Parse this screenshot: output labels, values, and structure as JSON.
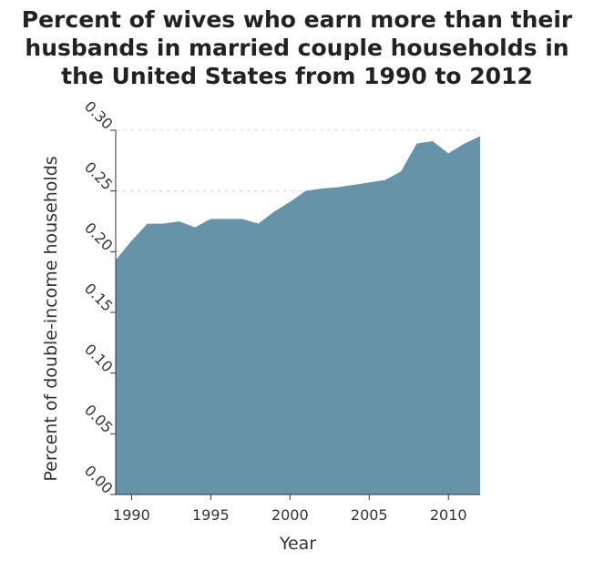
{
  "chart_data": {
    "type": "area",
    "title_lines": [
      "Percent of wives who earn more than their",
      "husbands in married couple households in",
      "the United States from 1990 to 2012"
    ],
    "xlabel": "Year",
    "ylabel": "Percent of double-income households",
    "xlim": [
      1989,
      2012
    ],
    "ylim": [
      0,
      0.3
    ],
    "x_ticks": [
      1990,
      1995,
      2000,
      2005,
      2010
    ],
    "y_ticks": [
      "0.00",
      "0.05",
      "0.10",
      "0.15",
      "0.20",
      "0.25",
      "0.30"
    ],
    "grid": "horizontal",
    "fill_color": "#6693a7",
    "series": [
      {
        "x": [
          1989,
          1990,
          1991,
          1992,
          1993,
          1994,
          1995,
          1996,
          1997,
          1998,
          1999,
          2000,
          2001,
          2002,
          2003,
          2004,
          2005,
          2006,
          2007,
          2008,
          2009,
          2010,
          2011,
          2012
        ],
        "values": [
          0.193,
          0.209,
          0.223,
          0.223,
          0.225,
          0.22,
          0.227,
          0.227,
          0.227,
          0.223,
          0.233,
          0.241,
          0.25,
          0.252,
          0.253,
          0.255,
          0.257,
          0.259,
          0.266,
          0.289,
          0.291,
          0.281,
          0.289,
          0.295
        ]
      }
    ]
  }
}
